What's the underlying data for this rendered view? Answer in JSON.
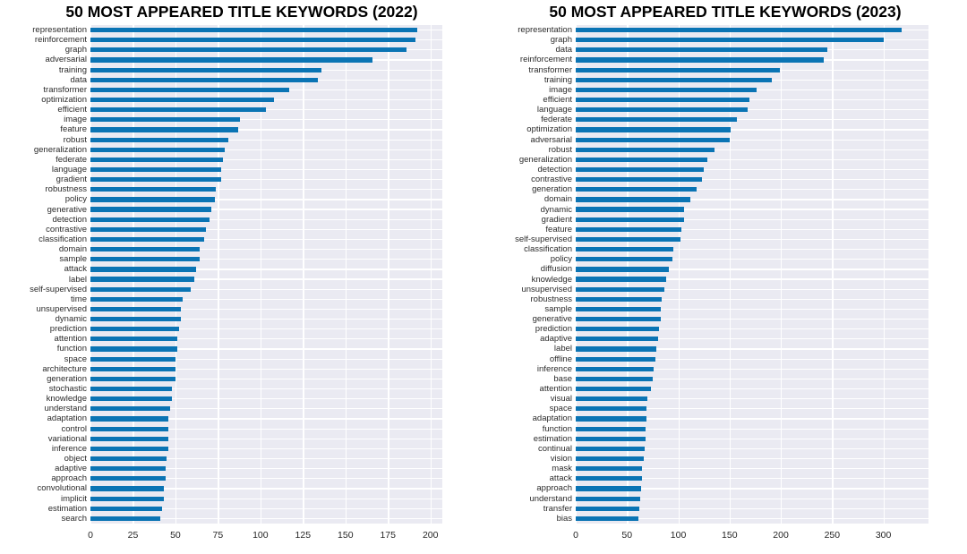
{
  "figure": {
    "background": "#ffffff",
    "plot_background": "#eaeaf2",
    "gridline_color": "#ffffff",
    "bar_color": "#0a74b4",
    "title_color": "#000000",
    "tick_label_color": "#262626"
  },
  "chart_data": [
    {
      "type": "bar",
      "orientation": "horizontal",
      "title": "50 MOST APPEARED TITLE KEYWORDS (2022)",
      "xlabel": "",
      "ylabel": "",
      "xlim": [
        0,
        207
      ],
      "x_ticks": [
        0,
        25,
        50,
        75,
        100,
        125,
        150,
        175,
        200
      ],
      "grid": "on",
      "legend": "none",
      "categories": [
        "representation",
        "reinforcement",
        "graph",
        "adversarial",
        "training",
        "data",
        "transformer",
        "optimization",
        "efficient",
        "image",
        "feature",
        "robust",
        "generalization",
        "federate",
        "language",
        "gradient",
        "robustness",
        "policy",
        "generative",
        "detection",
        "contrastive",
        "classification",
        "domain",
        "sample",
        "attack",
        "label",
        "self-supervised",
        "time",
        "unsupervised",
        "dynamic",
        "prediction",
        "attention",
        "function",
        "space",
        "architecture",
        "generation",
        "stochastic",
        "knowledge",
        "understand",
        "adaptation",
        "control",
        "variational",
        "inference",
        "object",
        "adaptive",
        "approach",
        "convolutional",
        "implicit",
        "estimation",
        "search"
      ],
      "values": [
        192,
        191,
        186,
        166,
        136,
        134,
        117,
        108,
        103,
        88,
        87,
        81,
        79,
        78,
        77,
        77,
        74,
        73,
        71,
        70,
        68,
        67,
        64,
        64,
        62,
        61,
        59,
        54,
        53,
        53,
        52,
        51,
        51,
        50,
        50,
        50,
        48,
        48,
        47,
        46,
        46,
        46,
        46,
        45,
        44,
        44,
        43,
        43,
        42,
        41
      ]
    },
    {
      "type": "bar",
      "orientation": "horizontal",
      "title": "50 MOST APPEARED TITLE KEYWORDS (2023)",
      "xlabel": "",
      "ylabel": "",
      "xlim": [
        0,
        344
      ],
      "x_ticks": [
        0,
        50,
        100,
        150,
        200,
        250,
        300
      ],
      "grid": "on",
      "legend": "none",
      "categories": [
        "representation",
        "graph",
        "data",
        "reinforcement",
        "transformer",
        "training",
        "image",
        "efficient",
        "language",
        "federate",
        "optimization",
        "adversarial",
        "robust",
        "generalization",
        "detection",
        "contrastive",
        "generation",
        "domain",
        "dynamic",
        "gradient",
        "feature",
        "self-supervised",
        "classification",
        "policy",
        "diffusion",
        "knowledge",
        "unsupervised",
        "robustness",
        "sample",
        "generative",
        "prediction",
        "adaptive",
        "label",
        "offline",
        "inference",
        "base",
        "attention",
        "visual",
        "space",
        "adaptation",
        "function",
        "estimation",
        "continual",
        "vision",
        "mask",
        "attack",
        "approach",
        "understand",
        "transfer",
        "bias"
      ],
      "values": [
        318,
        300,
        245,
        242,
        199,
        191,
        176,
        169,
        168,
        157,
        151,
        150,
        135,
        128,
        125,
        123,
        118,
        112,
        106,
        106,
        103,
        102,
        95,
        94,
        91,
        88,
        86,
        84,
        83,
        83,
        81,
        80,
        79,
        78,
        76,
        75,
        73,
        70,
        69,
        69,
        68,
        68,
        67,
        66,
        65,
        65,
        64,
        63,
        62,
        61
      ]
    }
  ]
}
